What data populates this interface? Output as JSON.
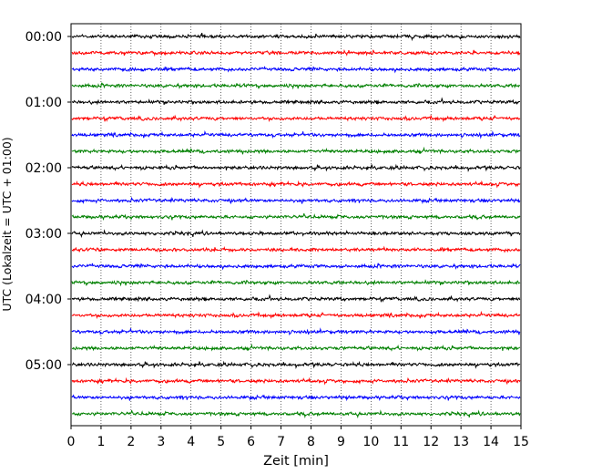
{
  "chart_data": {
    "type": "line",
    "description_type": "helicorder",
    "xlabel": "Zeit  [min]",
    "ylabel": "UTC (Lokalzeit = UTC + 01:00)",
    "xlim": [
      0,
      15
    ],
    "x_ticks": [
      "0",
      "1",
      "2",
      "3",
      "4",
      "5",
      "6",
      "7",
      "8",
      "9",
      "10",
      "11",
      "12",
      "13",
      "14",
      "15"
    ],
    "y_tick_labels": [
      "00:00",
      "01:00",
      "02:00",
      "03:00",
      "04:00",
      "05:00"
    ],
    "trace_interval_minutes": 15,
    "trace_count": 24,
    "trace_colors": [
      "#000000",
      "#ff0000",
      "#0000ff",
      "#008000"
    ],
    "grid": {
      "x": "dotted vertical lines at each minute",
      "y": false
    }
  }
}
